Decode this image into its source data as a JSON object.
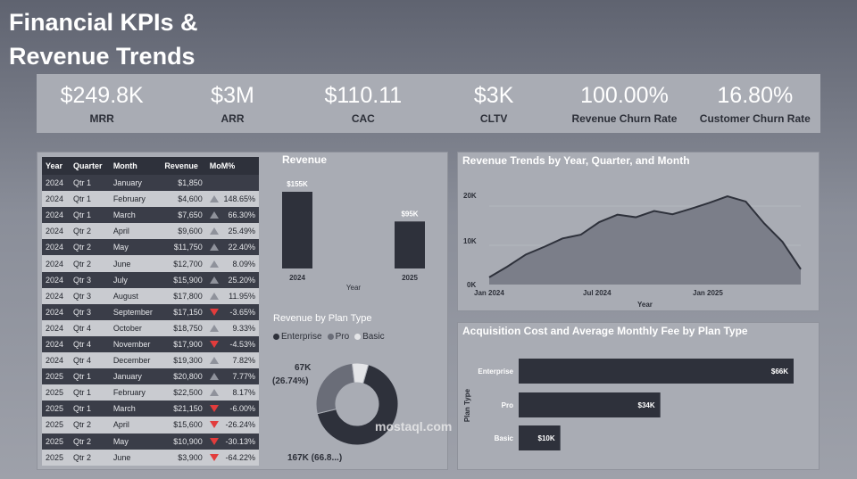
{
  "header": {
    "title_line1": "Financial KPIs &",
    "title_line2": "Revenue Trends"
  },
  "kpis": [
    {
      "value": "$249.8K",
      "label": "MRR"
    },
    {
      "value": "$3M",
      "label": "ARR"
    },
    {
      "value": "$110.11",
      "label": "CAC"
    },
    {
      "value": "$3K",
      "label": "CLTV"
    },
    {
      "value": "100.00%",
      "label": "Revenue Churn Rate"
    },
    {
      "value": "16.80%",
      "label": "Customer Churn Rate"
    }
  ],
  "table": {
    "headers": [
      "Year",
      "Quarter",
      "Month",
      "Revenue",
      "MoM%"
    ],
    "rows": [
      [
        "2024",
        "Qtr 1",
        "January",
        "$1,850",
        ""
      ],
      [
        "2024",
        "Qtr 1",
        "February",
        "$4,600",
        "148.65%"
      ],
      [
        "2024",
        "Qtr 1",
        "March",
        "$7,650",
        "66.30%"
      ],
      [
        "2024",
        "Qtr 2",
        "April",
        "$9,600",
        "25.49%"
      ],
      [
        "2024",
        "Qtr 2",
        "May",
        "$11,750",
        "22.40%"
      ],
      [
        "2024",
        "Qtr 2",
        "June",
        "$12,700",
        "8.09%"
      ],
      [
        "2024",
        "Qtr 3",
        "July",
        "$15,900",
        "25.20%"
      ],
      [
        "2024",
        "Qtr 3",
        "August",
        "$17,800",
        "11.95%"
      ],
      [
        "2024",
        "Qtr 3",
        "September",
        "$17,150",
        "-3.65%"
      ],
      [
        "2024",
        "Qtr 4",
        "October",
        "$18,750",
        "9.33%"
      ],
      [
        "2024",
        "Qtr 4",
        "November",
        "$17,900",
        "-4.53%"
      ],
      [
        "2024",
        "Qtr 4",
        "December",
        "$19,300",
        "7.82%"
      ],
      [
        "2025",
        "Qtr 1",
        "January",
        "$20,800",
        "7.77%"
      ],
      [
        "2025",
        "Qtr 1",
        "February",
        "$22,500",
        "8.17%"
      ],
      [
        "2025",
        "Qtr 1",
        "March",
        "$21,150",
        "-6.00%"
      ],
      [
        "2025",
        "Qtr 2",
        "April",
        "$15,600",
        "-26.24%"
      ],
      [
        "2025",
        "Qtr 2",
        "May",
        "$10,900",
        "-30.13%"
      ],
      [
        "2025",
        "Qtr 2",
        "June",
        "$3,900",
        "-64.22%"
      ]
    ]
  },
  "revenue_chart": {
    "title": "Revenue",
    "xlabel": "Year",
    "bars": [
      {
        "label": "2024",
        "value_label": "$155K"
      },
      {
        "label": "2025",
        "value_label": "$95K"
      }
    ]
  },
  "plan_donut": {
    "title": "Revenue by Plan Type",
    "legend": [
      "Enterprise",
      "Pro",
      "Basic"
    ],
    "label_pro_value": "67K",
    "label_pro_pct": "(26.74%)",
    "label_ent": "167K (66.8...)"
  },
  "trend_chart": {
    "title": "Revenue Trends by Year, Quarter, and Month",
    "yticks": [
      "20K",
      "10K",
      "0K"
    ],
    "xticks": [
      "Jan 2024",
      "Jul 2024",
      "Jan 2025"
    ],
    "xlabel": "Year"
  },
  "acq_chart": {
    "title": "Acquisition Cost and Average Monthly Fee by Plan Type",
    "ylabel": "Plan Type"
  },
  "watermark": "mostaql.com",
  "chart_data": [
    {
      "type": "bar",
      "title": "Revenue",
      "xlabel": "Year",
      "categories": [
        "2024",
        "2025"
      ],
      "values": [
        155000,
        95000
      ]
    },
    {
      "type": "pie",
      "title": "Revenue by Plan Type",
      "categories": [
        "Enterprise",
        "Pro",
        "Basic"
      ],
      "values": [
        167000,
        67000,
        16000
      ]
    },
    {
      "type": "area",
      "title": "Revenue Trends by Year, Quarter, and Month",
      "xlabel": "Year",
      "x": [
        "2024-01",
        "2024-02",
        "2024-03",
        "2024-04",
        "2024-05",
        "2024-06",
        "2024-07",
        "2024-08",
        "2024-09",
        "2024-10",
        "2024-11",
        "2024-12",
        "2025-01",
        "2025-02",
        "2025-03",
        "2025-04",
        "2025-05",
        "2025-06"
      ],
      "values": [
        1850,
        4600,
        7650,
        9600,
        11750,
        12700,
        15900,
        17800,
        17150,
        18750,
        17900,
        19300,
        20800,
        22500,
        21150,
        15600,
        10900,
        3900
      ],
      "ylim": [
        0,
        25000
      ],
      "yticks": [
        "0K",
        "10K",
        "20K"
      ]
    },
    {
      "type": "bar",
      "orientation": "horizontal",
      "title": "Acquisition Cost and Average Monthly Fee by Plan Type",
      "ylabel": "Plan Type",
      "categories": [
        "Enterprise",
        "Pro",
        "Basic"
      ],
      "values": [
        66000,
        34000,
        10000
      ],
      "value_labels": [
        "$66K",
        "$34K",
        "$10K"
      ]
    }
  ]
}
